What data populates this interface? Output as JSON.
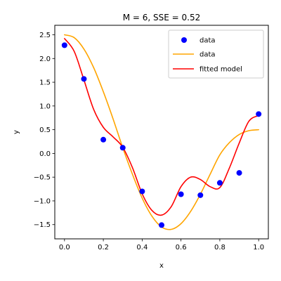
{
  "chart_data": {
    "type": "line",
    "title": "M = 6, SSE = 0.52",
    "xlabel": "x",
    "ylabel": "y",
    "xlim": [
      -0.05,
      1.05
    ],
    "ylim": [
      -1.8,
      2.7
    ],
    "xticks": [
      0.0,
      0.2,
      0.4,
      0.6,
      0.8,
      1.0
    ],
    "xtick_labels": [
      "0.0",
      "0.2",
      "0.4",
      "0.6",
      "0.8",
      "1.0"
    ],
    "yticks": [
      -1.5,
      -1.0,
      -0.5,
      0.0,
      0.5,
      1.0,
      1.5,
      2.0,
      2.5
    ],
    "ytick_labels": [
      "−1.5",
      "−1.0",
      "−0.5",
      "0.0",
      "0.5",
      "1.0",
      "1.5",
      "2.0",
      "2.5"
    ],
    "grid": false,
    "legend_position": "top-right",
    "series": [
      {
        "name": "data",
        "kind": "scatter",
        "color": "#0000ff",
        "x": [
          0.0,
          0.1,
          0.2,
          0.3,
          0.4,
          0.5,
          0.6,
          0.7,
          0.8,
          0.9,
          1.0
        ],
        "y": [
          2.28,
          1.57,
          0.29,
          0.12,
          -0.8,
          -1.51,
          -0.86,
          -0.88,
          -0.62,
          -0.41,
          0.83
        ]
      },
      {
        "name": "data",
        "kind": "line",
        "color": "#ffa500",
        "x": [
          0.0,
          0.05,
          0.1,
          0.15,
          0.2,
          0.25,
          0.3,
          0.35,
          0.4,
          0.45,
          0.5,
          0.55,
          0.6,
          0.65,
          0.7,
          0.75,
          0.8,
          0.85,
          0.9,
          0.95,
          1.0
        ],
        "y": [
          2.5,
          2.44,
          2.2,
          1.81,
          1.3,
          0.73,
          0.12,
          -0.44,
          -0.94,
          -1.32,
          -1.55,
          -1.6,
          -1.48,
          -1.22,
          -0.86,
          -0.44,
          -0.03,
          0.23,
          0.4,
          0.48,
          0.5
        ]
      },
      {
        "name": "fitted model",
        "kind": "line",
        "color": "#ff0000",
        "x": [
          0.0,
          0.05,
          0.1,
          0.15,
          0.2,
          0.25,
          0.3,
          0.35,
          0.4,
          0.45,
          0.5,
          0.55,
          0.6,
          0.65,
          0.7,
          0.75,
          0.8,
          0.85,
          0.9,
          0.95,
          1.0
        ],
        "y": [
          2.42,
          2.15,
          1.55,
          0.93,
          0.55,
          0.35,
          0.13,
          -0.3,
          -0.85,
          -1.2,
          -1.3,
          -1.12,
          -0.7,
          -0.5,
          -0.55,
          -0.7,
          -0.72,
          -0.3,
          0.22,
          0.68,
          0.8
        ]
      }
    ]
  }
}
